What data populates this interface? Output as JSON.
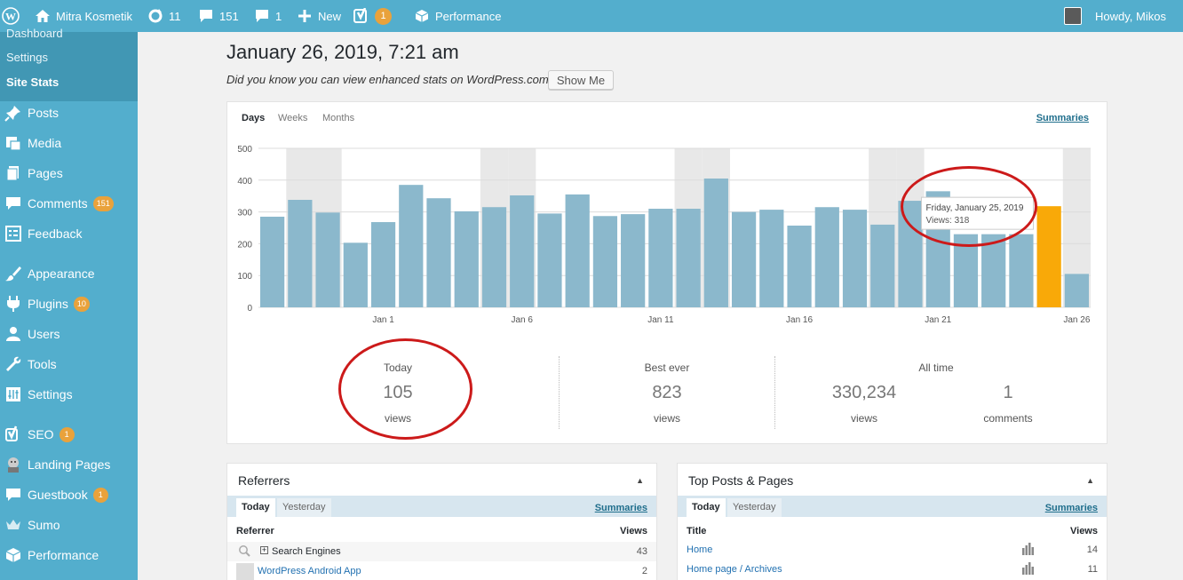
{
  "adminbar": {
    "site_name": "Mitra Kosmetik",
    "updates": "11",
    "comments": "151",
    "pending_comments": "1",
    "new_label": "New",
    "seo_badge": "1",
    "performance": "Performance",
    "howdy": "Howdy, Mikos"
  },
  "sidebar": {
    "submenu": {
      "dashboard": "Dashboard",
      "settings": "Settings",
      "site_stats": "Site Stats"
    },
    "items": [
      {
        "label": "Posts",
        "icon": "pin-icon"
      },
      {
        "label": "Media",
        "icon": "media-icon"
      },
      {
        "label": "Pages",
        "icon": "pages-icon"
      },
      {
        "label": "Comments",
        "icon": "comments-icon",
        "badge": "151"
      },
      {
        "label": "Feedback",
        "icon": "feedback-icon"
      },
      {
        "label": "Appearance",
        "icon": "brush-icon"
      },
      {
        "label": "Plugins",
        "icon": "plug-icon",
        "badge": "10"
      },
      {
        "label": "Users",
        "icon": "user-icon"
      },
      {
        "label": "Tools",
        "icon": "wrench-icon"
      },
      {
        "label": "Settings",
        "icon": "settings-icon"
      },
      {
        "label": "SEO",
        "icon": "yoast-icon",
        "badge": "1"
      },
      {
        "label": "Landing Pages",
        "icon": "landing-icon"
      },
      {
        "label": "Guestbook",
        "icon": "guestbook-icon",
        "badge": "1"
      },
      {
        "label": "Sumo",
        "icon": "crown-icon"
      },
      {
        "label": "Performance",
        "icon": "cube-icon"
      }
    ]
  },
  "main": {
    "title": "January 26, 2019, 7:21 am",
    "did_you_know": "Did you know you can view enhanced stats on WordPress.com?",
    "show_me": "Show Me"
  },
  "stats": {
    "tabs": [
      "Days",
      "Weeks",
      "Months"
    ],
    "summaries": "Summaries",
    "today_label": "Today",
    "today_value": "105",
    "today_unit": "views",
    "best_label": "Best ever",
    "best_value": "823",
    "best_unit": "views",
    "alltime_label": "All time",
    "alltime_views": "330,234",
    "alltime_views_unit": "views",
    "alltime_comments": "1",
    "alltime_comments_unit": "comments"
  },
  "chart_data": {
    "type": "bar",
    "y_ticks": [
      "0",
      "100",
      "200",
      "300",
      "400",
      "500"
    ],
    "ylim": [
      0,
      500
    ],
    "x_tick_labels": [
      {
        "index": 4,
        "label": "Jan 1"
      },
      {
        "index": 9,
        "label": "Jan 6"
      },
      {
        "index": 14,
        "label": "Jan 11"
      },
      {
        "index": 19,
        "label": "Jan 16"
      },
      {
        "index": 24,
        "label": "Jan 21"
      },
      {
        "index": 29,
        "label": "Jan 26"
      }
    ],
    "values": [
      285,
      338,
      298,
      203,
      268,
      385,
      343,
      302,
      315,
      352,
      295,
      355,
      287,
      293,
      310,
      310,
      405,
      300,
      307,
      257,
      315,
      307,
      260,
      335,
      365,
      230,
      230,
      230,
      318,
      105
    ],
    "weekend_indices": [
      1,
      2,
      8,
      9,
      15,
      16,
      22,
      23,
      29
    ],
    "highlight_index": 28,
    "bar_color": "#8bb8cc",
    "highlight_color": "#f9a908",
    "weekend_color": "#e8e8e8",
    "tooltip": {
      "date": "Friday, January 25, 2019",
      "views": "Views: 318"
    }
  },
  "referrers": {
    "title": "Referrers",
    "tabs": [
      "Today",
      "Yesterday"
    ],
    "summaries": "Summaries",
    "col_ref": "Referrer",
    "col_views": "Views",
    "rows": [
      {
        "name": "Search Engines",
        "views": "43"
      },
      {
        "name": "WordPress Android App",
        "views": "2"
      }
    ]
  },
  "top_posts": {
    "title": "Top Posts & Pages",
    "tabs": [
      "Today",
      "Yesterday"
    ],
    "summaries": "Summaries",
    "col_title": "Title",
    "col_views": "Views",
    "rows": [
      {
        "name": "Home",
        "views": "14"
      },
      {
        "name": "Home page / Archives",
        "views": "11"
      }
    ]
  }
}
